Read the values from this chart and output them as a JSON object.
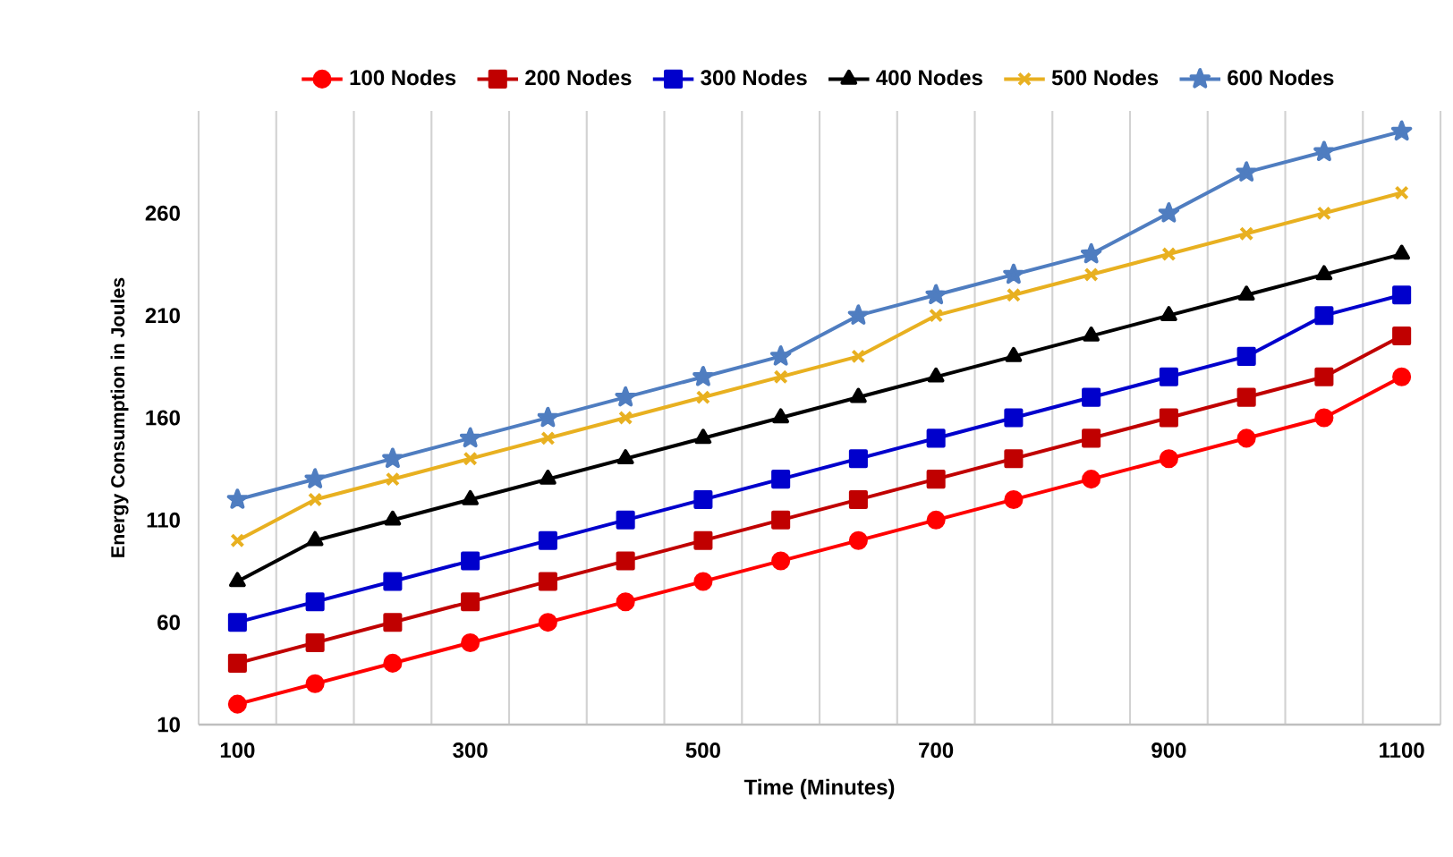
{
  "chart_data": {
    "type": "line",
    "xlabel": "Time (Minutes)",
    "ylabel": "Energy Consumption in Joules",
    "categories": [
      "100",
      null,
      null,
      "300",
      null,
      null,
      "500",
      null,
      null,
      "700",
      null,
      null,
      "900",
      null,
      null,
      "1100"
    ],
    "ylim": [
      10,
      310
    ],
    "yticks": [
      10,
      60,
      110,
      160,
      210,
      260
    ],
    "grid": "x",
    "legend": "top",
    "line_style": "solid",
    "series": [
      {
        "name": "100 Nodes",
        "color": "#ff0000",
        "marker": "circle",
        "values": [
          20,
          30,
          40,
          50,
          60,
          70,
          80,
          90,
          100,
          110,
          120,
          130,
          140,
          150,
          160,
          180
        ]
      },
      {
        "name": "200 Nodes",
        "color": "#c00000",
        "marker": "square",
        "values": [
          40,
          50,
          60,
          70,
          80,
          90,
          100,
          110,
          120,
          130,
          140,
          150,
          160,
          170,
          180,
          200
        ]
      },
      {
        "name": "300 Nodes",
        "color": "#0000cc",
        "marker": "square",
        "values": [
          60,
          70,
          80,
          90,
          100,
          110,
          120,
          130,
          140,
          150,
          160,
          170,
          180,
          190,
          210,
          220
        ]
      },
      {
        "name": "400 Nodes",
        "color": "#000000",
        "marker": "triangle",
        "values": [
          80,
          100,
          110,
          120,
          130,
          140,
          150,
          160,
          170,
          180,
          190,
          200,
          210,
          220,
          230,
          240
        ]
      },
      {
        "name": "500 Nodes",
        "color": "#e8b020",
        "marker": "cross",
        "values": [
          100,
          120,
          130,
          140,
          150,
          160,
          170,
          180,
          190,
          210,
          220,
          230,
          240,
          250,
          260,
          270
        ]
      },
      {
        "name": "600 Nodes",
        "color": "#4f7dc0",
        "marker": "star",
        "values": [
          120,
          130,
          140,
          150,
          160,
          170,
          180,
          190,
          210,
          220,
          230,
          240,
          260,
          280,
          290,
          300
        ]
      }
    ]
  }
}
